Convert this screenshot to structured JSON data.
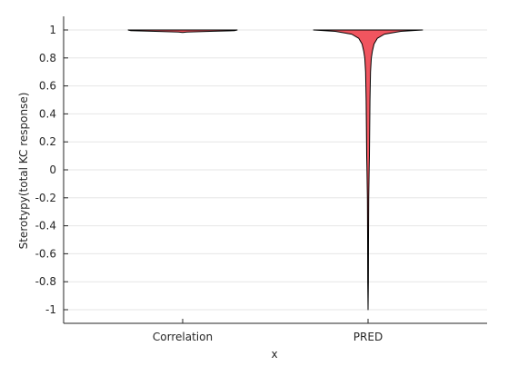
{
  "chart_data": {
    "type": "violin",
    "title": "",
    "xlabel": "x",
    "ylabel": "Sterotypy(total KC response)",
    "ylim": [
      -1,
      1
    ],
    "yticks": [
      1,
      0.8,
      0.6,
      0.4,
      0.2,
      0,
      -0.2,
      -0.4,
      -0.6,
      -0.8,
      -1
    ],
    "ytick_labels": [
      "1",
      "0.8",
      "0.6",
      "0.4",
      "0.2",
      "0",
      "-0.2",
      "-0.4",
      "-0.6",
      "-0.8",
      "-1"
    ],
    "grid": "y-major",
    "categories": [
      "Correlation",
      "PRED"
    ],
    "fill_color": "#f0555f",
    "edge_color": "#000000",
    "violins": [
      {
        "category": "Correlation",
        "range": [
          0.982,
          1.0
        ],
        "width_profile": [
          [
            1.0,
            1.0
          ],
          [
            0.995,
            0.95
          ],
          [
            0.99,
            0.5
          ],
          [
            0.985,
            0.08
          ],
          [
            0.982,
            0.0
          ]
        ]
      },
      {
        "category": "PRED",
        "range": [
          -1.0,
          1.0
        ],
        "width_profile": [
          [
            1.0,
            1.0
          ],
          [
            0.99,
            0.6
          ],
          [
            0.97,
            0.3
          ],
          [
            0.94,
            0.17
          ],
          [
            0.9,
            0.11
          ],
          [
            0.85,
            0.08
          ],
          [
            0.8,
            0.06
          ],
          [
            0.7,
            0.045
          ],
          [
            0.5,
            0.035
          ],
          [
            0.3,
            0.03
          ],
          [
            0.1,
            0.025
          ],
          [
            0.0,
            0.02
          ],
          [
            -0.2,
            0.012
          ],
          [
            -0.5,
            0.008
          ],
          [
            -0.8,
            0.006
          ],
          [
            -1.0,
            0.0
          ]
        ]
      }
    ]
  }
}
